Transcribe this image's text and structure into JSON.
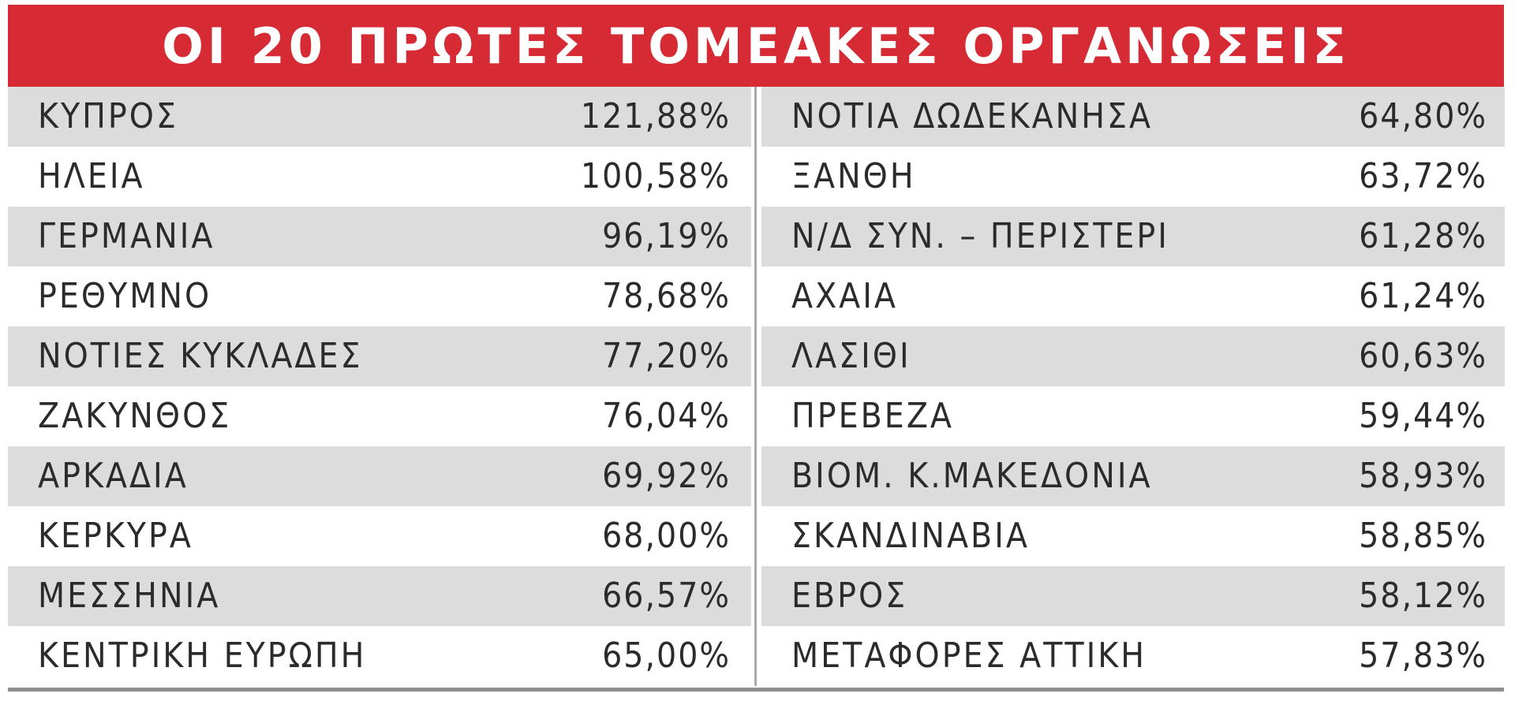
{
  "chart_data": {
    "type": "table",
    "title": "ΟΙ 20 ΠΡΩΤΕΣ ΤΟΜΕΑΚΕΣ ΟΡΓΑΝΩΣΕΙΣ",
    "columns": [
      [
        {
          "name": "ΚΥΠΡΟΣ",
          "value": "121,88%"
        },
        {
          "name": "ΗΛΕΙΑ",
          "value": "100,58%"
        },
        {
          "name": "ΓΕΡΜΑΝΙΑ",
          "value": "96,19%"
        },
        {
          "name": "ΡΕΘΥΜΝΟ",
          "value": "78,68%"
        },
        {
          "name": "ΝΟΤΙΕΣ ΚΥΚΛΑΔΕΣ",
          "value": "77,20%"
        },
        {
          "name": "ΖΑΚΥΝΘΟΣ",
          "value": "76,04%"
        },
        {
          "name": "ΑΡΚΑΔΙΑ",
          "value": "69,92%"
        },
        {
          "name": "ΚΕΡΚΥΡΑ",
          "value": "68,00%"
        },
        {
          "name": "ΜΕΣΣΗΝΙΑ",
          "value": "66,57%"
        },
        {
          "name": "ΚΕΝΤΡΙΚΗ ΕΥΡΩΠΗ",
          "value": "65,00%"
        }
      ],
      [
        {
          "name": "ΝΟΤΙΑ ΔΩΔΕΚΑΝΗΣΑ",
          "value": "64,80%"
        },
        {
          "name": "ΞΑΝΘΗ",
          "value": "63,72%"
        },
        {
          "name": "Ν/Δ ΣΥΝ. – ΠΕΡΙΣΤΕΡΙ",
          "value": "61,28%"
        },
        {
          "name": "ΑΧΑΙΑ",
          "value": "61,24%"
        },
        {
          "name": "ΛΑΣΙΘΙ",
          "value": "60,63%"
        },
        {
          "name": "ΠΡΕΒΕΖΑ",
          "value": "59,44%"
        },
        {
          "name": "ΒΙΟΜ. Κ.ΜΑΚΕΔΟΝΙΑ",
          "value": "58,93%"
        },
        {
          "name": "ΣΚΑΝΔΙΝΑΒΙΑ",
          "value": "58,85%"
        },
        {
          "name": "ΕΒΡΟΣ",
          "value": "58,12%"
        },
        {
          "name": "ΜΕΤΑΦΟΡΕΣ ΑΤΤΙΚΗ",
          "value": "57,83%"
        }
      ]
    ],
    "colors": {
      "header_background": "#d62b34",
      "header_text": "#ffffff",
      "shaded_row": "#dcdcdc",
      "plain_row": "#ffffff",
      "text": "#2b2b2b",
      "divider": "#a9a9a9"
    }
  }
}
